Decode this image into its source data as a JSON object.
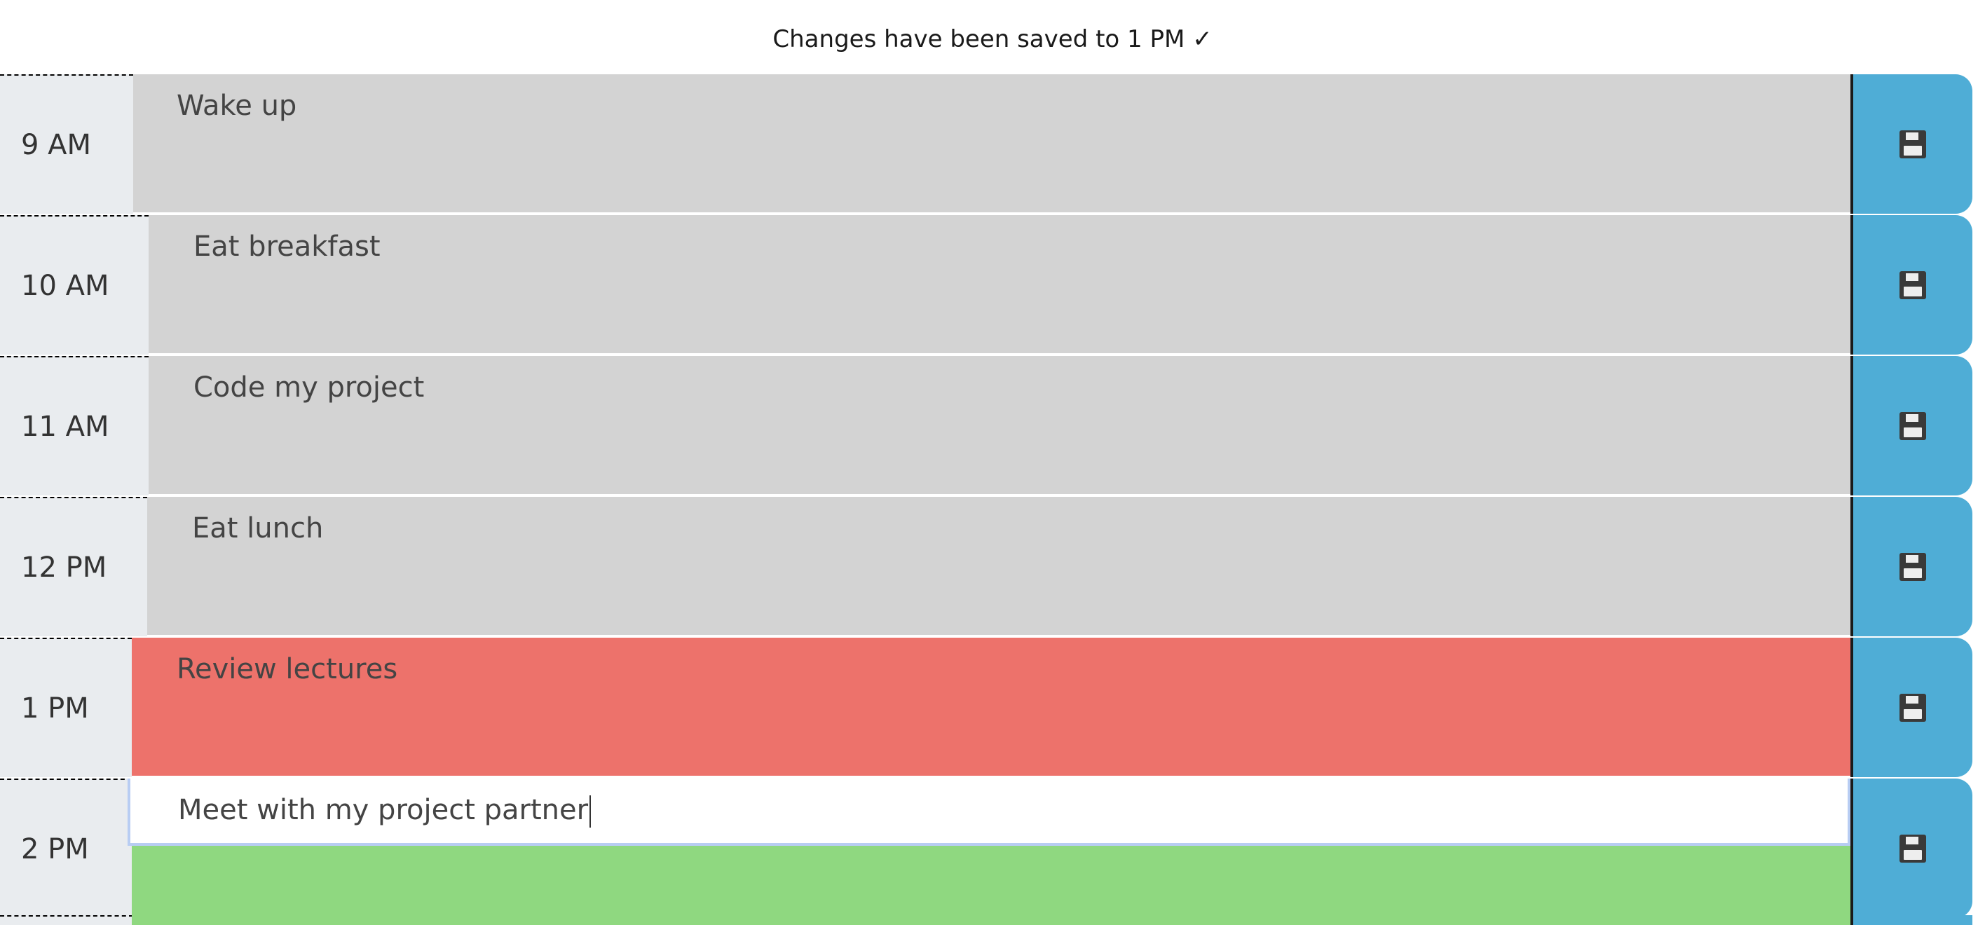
{
  "notice": {
    "text": "Changes have been saved to 1 PM ✓"
  },
  "rows": [
    {
      "hour": "9 AM",
      "description": "Wake up",
      "state": "past"
    },
    {
      "hour": "10 AM",
      "description": "Eat breakfast",
      "state": "past"
    },
    {
      "hour": "11 AM",
      "description": "Code my project",
      "state": "past"
    },
    {
      "hour": "12 PM",
      "description": "Eat lunch",
      "state": "past"
    },
    {
      "hour": "1 PM",
      "description": "Review lectures",
      "state": "present"
    },
    {
      "hour": "2 PM",
      "description": "Meet with my project partner",
      "state": "future",
      "focused": true
    }
  ],
  "save_icon": "floppy-disk-icon",
  "colors": {
    "past": "#d3d3d3",
    "present": "#ed726b",
    "future": "#8fd880",
    "save_button": "#4fadd6",
    "hour_background": "#e9ecef"
  }
}
